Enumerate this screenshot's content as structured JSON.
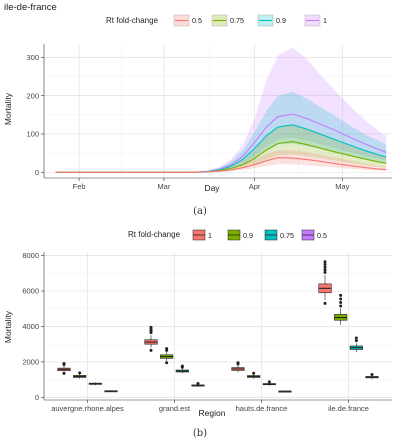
{
  "chart_data": [
    {
      "type": "area",
      "title": "ile-de-france",
      "xlabel": "Day",
      "ylabel": "Mortality",
      "ylim": [
        -15,
        335
      ],
      "x_ticks": [
        {
          "label": "Feb",
          "day": 32
        },
        {
          "label": "Mar",
          "day": 61
        },
        {
          "label": "Apr",
          "day": 92
        },
        {
          "label": "May",
          "day": 122
        }
      ],
      "xlim": [
        20,
        139
      ],
      "y_ticks": [
        0,
        100,
        200,
        300
      ],
      "legend": {
        "title": "Rt fold-change",
        "placement": "top",
        "labels": [
          "0.5",
          "0.75",
          "0.9",
          "1"
        ]
      },
      "grid": true,
      "caption": "(a)",
      "series": [
        {
          "name": "0.5",
          "color": "#F8766D",
          "fill": "#F8766D",
          "day": [
            24,
            70,
            76,
            80,
            84,
            88,
            92,
            96,
            100,
            105,
            110,
            115,
            120,
            125,
            130,
            135,
            137
          ],
          "mean": [
            0,
            0,
            1,
            3,
            6,
            12,
            20,
            30,
            38,
            37,
            33,
            28,
            22,
            17,
            12,
            8,
            7
          ],
          "lower": [
            0,
            0,
            0,
            1,
            3,
            6,
            11,
            16,
            21,
            21,
            18,
            15,
            12,
            9,
            6,
            4,
            3
          ],
          "upper": [
            0,
            0,
            2,
            5,
            10,
            20,
            32,
            48,
            58,
            57,
            52,
            45,
            38,
            30,
            22,
            16,
            14
          ]
        },
        {
          "name": "0.75",
          "color": "#7CAE00",
          "fill": "#7CAE00",
          "day": [
            24,
            70,
            76,
            80,
            84,
            88,
            92,
            96,
            100,
            105,
            110,
            115,
            120,
            125,
            130,
            135,
            137
          ],
          "mean": [
            0,
            0,
            1,
            4,
            10,
            20,
            36,
            58,
            75,
            80,
            72,
            62,
            52,
            43,
            34,
            26,
            24
          ],
          "lower": [
            0,
            0,
            0,
            2,
            5,
            11,
            20,
            33,
            44,
            47,
            42,
            36,
            30,
            24,
            18,
            14,
            12
          ],
          "upper": [
            0,
            0,
            3,
            8,
            16,
            32,
            58,
            95,
            120,
            125,
            115,
            100,
            84,
            70,
            56,
            44,
            40
          ]
        },
        {
          "name": "0.9",
          "color": "#00BFC4",
          "fill": "#00BFC4",
          "day": [
            24,
            70,
            76,
            80,
            84,
            88,
            92,
            96,
            100,
            105,
            110,
            115,
            120,
            125,
            130,
            135,
            137
          ],
          "mean": [
            0,
            0,
            2,
            6,
            16,
            34,
            62,
            95,
            118,
            124,
            112,
            98,
            84,
            70,
            56,
            44,
            40
          ],
          "lower": [
            0,
            0,
            0,
            3,
            8,
            18,
            34,
            56,
            72,
            75,
            68,
            60,
            50,
            42,
            33,
            26,
            24
          ],
          "upper": [
            0,
            0,
            4,
            12,
            28,
            58,
            105,
            160,
            200,
            210,
            192,
            168,
            145,
            120,
            98,
            80,
            72
          ]
        },
        {
          "name": "1",
          "color": "#C77CFF",
          "fill": "#C77CFF",
          "day": [
            24,
            70,
            76,
            80,
            84,
            88,
            92,
            96,
            100,
            105,
            110,
            115,
            120,
            125,
            130,
            135,
            137
          ],
          "mean": [
            0,
            0,
            2,
            8,
            20,
            42,
            78,
            118,
            145,
            152,
            140,
            124,
            108,
            90,
            73,
            58,
            52
          ],
          "lower": [
            0,
            0,
            1,
            4,
            10,
            22,
            42,
            68,
            85,
            90,
            82,
            72,
            62,
            52,
            42,
            34,
            30
          ],
          "upper": [
            0,
            0,
            5,
            14,
            34,
            72,
            140,
            240,
            305,
            325,
            295,
            250,
            210,
            170,
            135,
            105,
            95
          ]
        }
      ]
    },
    {
      "type": "box",
      "xlabel": "Region",
      "ylabel": "Mortality",
      "ylim": [
        -150,
        8200
      ],
      "y_ticks": [
        0,
        2000,
        4000,
        6000,
        8000
      ],
      "categories": [
        "auvergne.rhone.alpes",
        "grand.est",
        "hauts.de.france",
        "ile.de.france"
      ],
      "legend": {
        "title": "Rt fold-change",
        "placement": "top",
        "labels": [
          "1",
          "0.9",
          "0.75",
          "0.5"
        ]
      },
      "grid": true,
      "caption": "(b)",
      "series": [
        {
          "name": "1",
          "color": "#F8766D",
          "boxes": [
            {
              "min": 1400,
              "q1": 1500,
              "median": 1580,
              "q3": 1650,
              "max": 1780,
              "outliers": [
                1850,
                1900,
                1350
              ]
            },
            {
              "min": 2800,
              "q1": 3000,
              "median": 3120,
              "q3": 3250,
              "max": 3500,
              "outliers": [
                3650,
                3750,
                3850,
                3950,
                2650
              ]
            },
            {
              "min": 1420,
              "q1": 1520,
              "median": 1600,
              "q3": 1680,
              "max": 1800,
              "outliers": [
                1880,
                1950
              ]
            },
            {
              "min": 5500,
              "q1": 5900,
              "median": 6150,
              "q3": 6400,
              "max": 6900,
              "outliers": [
                7050,
                7200,
                7350,
                7500,
                7650,
                5300
              ]
            }
          ]
        },
        {
          "name": "0.9",
          "color": "#7CAE00",
          "boxes": [
            {
              "min": 1050,
              "q1": 1120,
              "median": 1180,
              "q3": 1240,
              "max": 1320,
              "outliers": [
                1380
              ]
            },
            {
              "min": 2050,
              "q1": 2200,
              "median": 2300,
              "q3": 2400,
              "max": 2550,
              "outliers": [
                2650,
                2750,
                1950
              ]
            },
            {
              "min": 1050,
              "q1": 1120,
              "median": 1180,
              "q3": 1230,
              "max": 1300,
              "outliers": [
                1360
              ]
            },
            {
              "min": 4100,
              "q1": 4350,
              "median": 4500,
              "q3": 4680,
              "max": 5000,
              "outliers": [
                5150,
                5350,
                5550,
                5750
              ]
            }
          ]
        },
        {
          "name": "0.75",
          "color": "#00BFC4",
          "boxes": [
            {
              "min": 680,
              "q1": 730,
              "median": 760,
              "q3": 800,
              "max": 850,
              "outliers": []
            },
            {
              "min": 1350,
              "q1": 1430,
              "median": 1480,
              "q3": 1540,
              "max": 1620,
              "outliers": [
                1700,
                1760
              ]
            },
            {
              "min": 660,
              "q1": 710,
              "median": 740,
              "q3": 780,
              "max": 830,
              "outliers": [
                870
              ]
            },
            {
              "min": 2550,
              "q1": 2700,
              "median": 2800,
              "q3": 2900,
              "max": 3050,
              "outliers": [
                3200,
                3350
              ]
            }
          ]
        },
        {
          "name": "0.5",
          "color": "#C77CFF",
          "boxes": [
            {
              "min": 310,
              "q1": 340,
              "median": 355,
              "q3": 375,
              "max": 400,
              "outliers": []
            },
            {
              "min": 600,
              "q1": 650,
              "median": 675,
              "q3": 700,
              "max": 740,
              "outliers": [
                780
              ]
            },
            {
              "min": 290,
              "q1": 320,
              "median": 340,
              "q3": 360,
              "max": 385,
              "outliers": []
            },
            {
              "min": 1020,
              "q1": 1100,
              "median": 1140,
              "q3": 1180,
              "max": 1240,
              "outliers": [
                1290
              ]
            }
          ]
        }
      ]
    }
  ]
}
